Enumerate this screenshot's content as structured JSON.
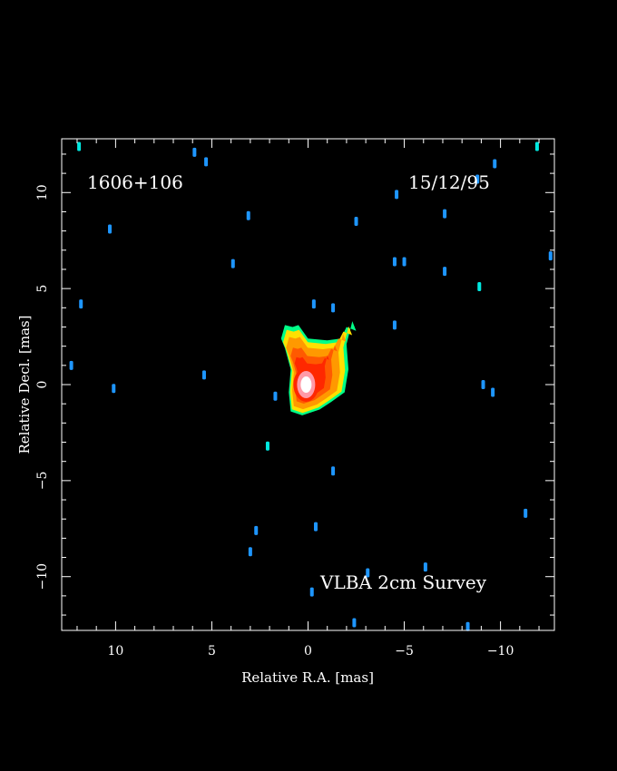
{
  "chart_data": {
    "type": "heatmap",
    "title": "",
    "xlabel": "Relative R.A. [mas]",
    "ylabel": "Relative Decl. [mas]",
    "xlim": [
      12.8,
      -12.8
    ],
    "ylim": [
      -12.8,
      12.8
    ],
    "xticks": [
      10,
      5,
      0,
      -5,
      -10
    ],
    "yticks": [
      10,
      5,
      0,
      -5,
      -10
    ],
    "xtick_labels": [
      "10",
      "5",
      "0",
      "−5",
      "−10"
    ],
    "ytick_labels": [
      "10",
      "5",
      "0",
      "−5",
      "−10"
    ],
    "minor_tick_step": 1,
    "grid": false,
    "annotations": {
      "source": "1606+106",
      "date": "15/12/95",
      "survey": "VLBA 2cm Survey"
    },
    "colors": {
      "background": "#000000",
      "frame": "#ffffff",
      "level_1": "#00ff88",
      "level_2": "#ffe000",
      "level_3": "#ff9900",
      "level_4": "#ff5a00",
      "level_5": "#ff2800",
      "level_6": "#ff9aa8",
      "level_7": "#ffffff",
      "noise": "#1e96ff",
      "noise_bright": "#00e8e0"
    },
    "core": {
      "x": 0.1,
      "y": 0.0
    },
    "jet": {
      "outline": [
        [
          0.9,
          0.8
        ],
        [
          1.2,
          1.9
        ],
        [
          1.4,
          2.4
        ],
        [
          1.2,
          3.1
        ],
        [
          0.8,
          3.0
        ],
        [
          0.5,
          3.1
        ],
        [
          0.0,
          2.4
        ],
        [
          -1.0,
          2.3
        ],
        [
          -1.7,
          2.4
        ],
        [
          -2.0,
          3.0
        ],
        [
          -2.5,
          2.8
        ],
        [
          -2.3,
          3.3
        ],
        [
          -2.0,
          2.1
        ],
        [
          -2.1,
          0.8
        ],
        [
          -1.9,
          -0.4
        ],
        [
          -1.2,
          -0.9
        ],
        [
          -0.6,
          -1.3
        ],
        [
          0.3,
          -1.6
        ],
        [
          0.9,
          -1.4
        ],
        [
          1.0,
          -0.4
        ]
      ],
      "inner_scale": [
        0.92,
        0.8,
        0.62,
        0.46
      ]
    },
    "noise_blobs": [
      {
        "x": 11.9,
        "y": 12.4,
        "bright": true
      },
      {
        "x": -11.9,
        "y": 12.4,
        "bright": true
      },
      {
        "x": 5.3,
        "y": 11.6
      },
      {
        "x": 5.9,
        "y": 12.1
      },
      {
        "x": -9.7,
        "y": 11.5
      },
      {
        "x": -4.6,
        "y": 9.9
      },
      {
        "x": -8.8,
        "y": 10.7
      },
      {
        "x": 3.1,
        "y": 8.8
      },
      {
        "x": -2.5,
        "y": 8.5
      },
      {
        "x": -7.1,
        "y": 8.9
      },
      {
        "x": 10.3,
        "y": 8.1
      },
      {
        "x": 3.9,
        "y": 6.3
      },
      {
        "x": -4.5,
        "y": 6.4
      },
      {
        "x": -5.0,
        "y": 6.4
      },
      {
        "x": -12.6,
        "y": 6.7
      },
      {
        "x": -7.1,
        "y": 5.9
      },
      {
        "x": -8.9,
        "y": 5.1,
        "bright": true
      },
      {
        "x": 11.8,
        "y": 4.2
      },
      {
        "x": -0.3,
        "y": 4.2
      },
      {
        "x": -1.3,
        "y": 4.0
      },
      {
        "x": -4.5,
        "y": 3.1
      },
      {
        "x": 12.3,
        "y": 1.0
      },
      {
        "x": 5.4,
        "y": 0.5
      },
      {
        "x": 10.1,
        "y": -0.2
      },
      {
        "x": -9.1,
        "y": 0.0
      },
      {
        "x": -9.6,
        "y": -0.4
      },
      {
        "x": 1.7,
        "y": -0.6
      },
      {
        "x": 2.1,
        "y": -3.2,
        "bright": true
      },
      {
        "x": -1.3,
        "y": -4.5
      },
      {
        "x": -0.4,
        "y": -7.4
      },
      {
        "x": -11.3,
        "y": -6.7
      },
      {
        "x": 2.7,
        "y": -7.6
      },
      {
        "x": 3.0,
        "y": -8.7
      },
      {
        "x": -6.1,
        "y": -9.5
      },
      {
        "x": -3.1,
        "y": -9.8
      },
      {
        "x": -0.2,
        "y": -10.8
      },
      {
        "x": -2.4,
        "y": -12.4
      },
      {
        "x": -8.3,
        "y": -12.6
      }
    ]
  }
}
